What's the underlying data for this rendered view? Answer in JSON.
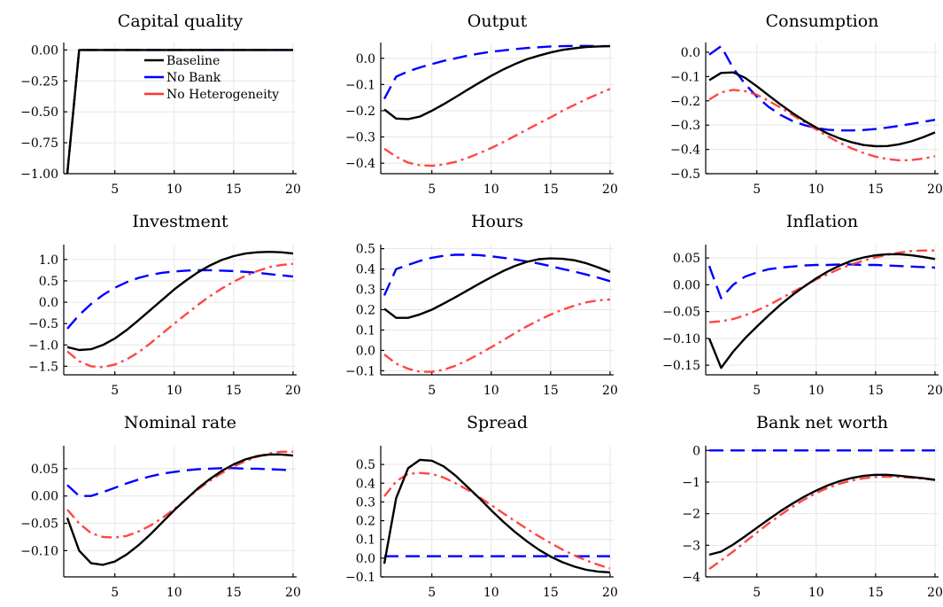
{
  "chart_data": {
    "type": "line",
    "legend": {
      "placement": "top-right of panel 1",
      "entries": [
        "Baseline",
        "No Bank",
        "No Heterogeneity"
      ]
    },
    "series_styles": [
      {
        "name": "Baseline",
        "color": "#000000",
        "dash": "solid"
      },
      {
        "name": "No Bank",
        "color": "#0000ff",
        "dash": "dashed"
      },
      {
        "name": "No Heterogeneity",
        "color": "#ff3333",
        "dash": "dash-dot"
      }
    ],
    "x": [
      1,
      2,
      3,
      4,
      5,
      6,
      7,
      8,
      9,
      10,
      11,
      12,
      13,
      14,
      15,
      16,
      17,
      18,
      19,
      20
    ],
    "panels": [
      {
        "title": "Capital quality",
        "xlim": [
          0.7,
          20.3
        ],
        "ylim": [
          -1.0,
          0.06
        ],
        "xticks": [
          {
            "v": 5,
            "label": "5"
          },
          {
            "v": 10,
            "label": "10"
          },
          {
            "v": 15,
            "label": "15"
          },
          {
            "v": 20,
            "label": "20"
          }
        ],
        "yticks": [
          {
            "v": 0,
            "label": "0.00"
          },
          {
            "v": -0.25,
            "label": "−0.25"
          },
          {
            "v": -0.5,
            "label": "−0.50"
          },
          {
            "v": -0.75,
            "label": "−0.75"
          },
          {
            "v": -1.0,
            "label": "−1.00"
          }
        ],
        "series": [
          [
            -1.0,
            0,
            0,
            0,
            0,
            0,
            0,
            0,
            0,
            0,
            0,
            0,
            0,
            0,
            0,
            0,
            0,
            0,
            0,
            0
          ],
          [
            -1.0,
            0,
            0,
            0,
            0,
            0,
            0,
            0,
            0,
            0,
            0,
            0,
            0,
            0,
            0,
            0,
            0,
            0,
            0,
            0
          ],
          [
            -1.0,
            0,
            0,
            0,
            0,
            0,
            0,
            0,
            0,
            0,
            0,
            0,
            0,
            0,
            0,
            0,
            0,
            0,
            0,
            0
          ]
        ]
      },
      {
        "title": "Output",
        "xlim": [
          0.7,
          20.3
        ],
        "ylim": [
          -0.44,
          0.06
        ],
        "xticks": [
          {
            "v": 5,
            "label": "5"
          },
          {
            "v": 10,
            "label": "10"
          },
          {
            "v": 15,
            "label": "15"
          },
          {
            "v": 20,
            "label": "20"
          }
        ],
        "yticks": [
          {
            "v": 0,
            "label": "0.0"
          },
          {
            "v": -0.1,
            "label": "−0.1"
          },
          {
            "v": -0.2,
            "label": "−0.2"
          },
          {
            "v": -0.3,
            "label": "−0.3"
          },
          {
            "v": -0.4,
            "label": "−0.4"
          }
        ],
        "series": [
          [
            -0.195,
            -0.23,
            -0.232,
            -0.222,
            -0.2,
            -0.175,
            -0.148,
            -0.12,
            -0.093,
            -0.067,
            -0.043,
            -0.022,
            -0.004,
            0.01,
            0.022,
            0.032,
            0.038,
            0.043,
            0.045,
            0.046
          ],
          [
            -0.155,
            -0.07,
            -0.05,
            -0.035,
            -0.022,
            -0.01,
            0.0,
            0.01,
            0.018,
            0.025,
            0.03,
            0.035,
            0.039,
            0.042,
            0.045,
            0.046,
            0.047,
            0.047,
            0.046,
            0.046
          ],
          [
            -0.345,
            -0.375,
            -0.398,
            -0.408,
            -0.41,
            -0.405,
            -0.395,
            -0.38,
            -0.362,
            -0.342,
            -0.32,
            -0.296,
            -0.272,
            -0.248,
            -0.225,
            -0.2,
            -0.178,
            -0.156,
            -0.136,
            -0.117
          ]
        ]
      },
      {
        "title": "Consumption",
        "xlim": [
          0.7,
          20.3
        ],
        "ylim": [
          -0.5,
          0.04
        ],
        "xticks": [
          {
            "v": 5,
            "label": "5"
          },
          {
            "v": 10,
            "label": "10"
          },
          {
            "v": 15,
            "label": "15"
          },
          {
            "v": 20,
            "label": "20"
          }
        ],
        "yticks": [
          {
            "v": 0,
            "label": "0.0"
          },
          {
            "v": -0.1,
            "label": "−0.1"
          },
          {
            "v": -0.2,
            "label": "−0.2"
          },
          {
            "v": -0.3,
            "label": "−0.3"
          },
          {
            "v": -0.4,
            "label": "−0.4"
          },
          {
            "v": -0.5,
            "label": "−0.5"
          }
        ],
        "series": [
          [
            -0.115,
            -0.085,
            -0.083,
            -0.105,
            -0.14,
            -0.178,
            -0.215,
            -0.25,
            -0.282,
            -0.31,
            -0.335,
            -0.355,
            -0.371,
            -0.382,
            -0.387,
            -0.386,
            -0.379,
            -0.367,
            -0.35,
            -0.33
          ],
          [
            -0.01,
            0.025,
            -0.065,
            -0.13,
            -0.183,
            -0.225,
            -0.258,
            -0.283,
            -0.3,
            -0.312,
            -0.319,
            -0.322,
            -0.322,
            -0.32,
            -0.316,
            -0.31,
            -0.303,
            -0.295,
            -0.287,
            -0.278
          ],
          [
            -0.195,
            -0.165,
            -0.155,
            -0.16,
            -0.175,
            -0.2,
            -0.228,
            -0.258,
            -0.288,
            -0.318,
            -0.347,
            -0.373,
            -0.396,
            -0.415,
            -0.43,
            -0.44,
            -0.445,
            -0.444,
            -0.438,
            -0.428
          ]
        ]
      },
      {
        "title": "Investment",
        "xlim": [
          0.7,
          20.3
        ],
        "ylim": [
          -1.7,
          1.35
        ],
        "xticks": [
          {
            "v": 5,
            "label": "5"
          },
          {
            "v": 10,
            "label": "10"
          },
          {
            "v": 15,
            "label": "15"
          },
          {
            "v": 20,
            "label": "20"
          }
        ],
        "yticks": [
          {
            "v": 1.0,
            "label": "1.0"
          },
          {
            "v": 0.5,
            "label": "0.5"
          },
          {
            "v": 0,
            "label": "0.0"
          },
          {
            "v": -0.5,
            "label": "−0.5"
          },
          {
            "v": -1.0,
            "label": "−1.0"
          },
          {
            "v": -1.5,
            "label": "−1.5"
          }
        ],
        "series": [
          [
            -1.05,
            -1.12,
            -1.1,
            -1.0,
            -0.85,
            -0.65,
            -0.42,
            -0.18,
            0.06,
            0.3,
            0.51,
            0.7,
            0.86,
            0.99,
            1.08,
            1.14,
            1.17,
            1.18,
            1.17,
            1.14
          ],
          [
            -0.62,
            -0.3,
            -0.04,
            0.17,
            0.34,
            0.47,
            0.57,
            0.64,
            0.69,
            0.72,
            0.74,
            0.75,
            0.75,
            0.74,
            0.73,
            0.71,
            0.69,
            0.66,
            0.63,
            0.6
          ],
          [
            -1.15,
            -1.38,
            -1.5,
            -1.52,
            -1.46,
            -1.34,
            -1.17,
            -0.96,
            -0.73,
            -0.5,
            -0.28,
            -0.06,
            0.14,
            0.32,
            0.48,
            0.62,
            0.73,
            0.82,
            0.87,
            0.9
          ]
        ]
      },
      {
        "title": "Hours",
        "xlim": [
          0.7,
          20.3
        ],
        "ylim": [
          -0.12,
          0.52
        ],
        "xticks": [
          {
            "v": 5,
            "label": "5"
          },
          {
            "v": 10,
            "label": "10"
          },
          {
            "v": 15,
            "label": "15"
          },
          {
            "v": 20,
            "label": "20"
          }
        ],
        "yticks": [
          {
            "v": 0.5,
            "label": "0.5"
          },
          {
            "v": 0.4,
            "label": "0.4"
          },
          {
            "v": 0.3,
            "label": "0.3"
          },
          {
            "v": 0.2,
            "label": "0.2"
          },
          {
            "v": 0.1,
            "label": "0.1"
          },
          {
            "v": 0,
            "label": "0.0"
          },
          {
            "v": -0.1,
            "label": "−0.1"
          }
        ],
        "series": [
          [
            0.205,
            0.16,
            0.16,
            0.177,
            0.2,
            0.23,
            0.262,
            0.295,
            0.328,
            0.36,
            0.39,
            0.415,
            0.435,
            0.448,
            0.452,
            0.45,
            0.443,
            0.428,
            0.408,
            0.385
          ],
          [
            0.27,
            0.4,
            0.42,
            0.44,
            0.455,
            0.465,
            0.47,
            0.47,
            0.468,
            0.462,
            0.455,
            0.447,
            0.437,
            0.427,
            0.414,
            0.4,
            0.387,
            0.373,
            0.357,
            0.34
          ],
          [
            -0.02,
            -0.065,
            -0.09,
            -0.105,
            -0.105,
            -0.095,
            -0.075,
            -0.048,
            -0.017,
            0.016,
            0.05,
            0.085,
            0.118,
            0.148,
            0.176,
            0.2,
            0.22,
            0.236,
            0.246,
            0.25
          ]
        ]
      },
      {
        "title": "Inflation",
        "xlim": [
          0.7,
          20.3
        ],
        "ylim": [
          -0.168,
          0.075
        ],
        "xticks": [
          {
            "v": 5,
            "label": "5"
          },
          {
            "v": 10,
            "label": "10"
          },
          {
            "v": 15,
            "label": "15"
          },
          {
            "v": 20,
            "label": "20"
          }
        ],
        "yticks": [
          {
            "v": 0.05,
            "label": "0.05"
          },
          {
            "v": 0,
            "label": "0.00"
          },
          {
            "v": -0.05,
            "label": "−0.05"
          },
          {
            "v": -0.1,
            "label": "−0.10"
          },
          {
            "v": -0.15,
            "label": "−0.15"
          }
        ],
        "series": [
          [
            -0.1,
            -0.155,
            -0.125,
            -0.1,
            -0.078,
            -0.057,
            -0.037,
            -0.019,
            -0.003,
            0.012,
            0.025,
            0.036,
            0.045,
            0.051,
            0.055,
            0.057,
            0.057,
            0.055,
            0.052,
            0.048
          ],
          [
            0.035,
            -0.025,
            0.0,
            0.015,
            0.023,
            0.029,
            0.032,
            0.034,
            0.036,
            0.037,
            0.037,
            0.038,
            0.038,
            0.037,
            0.037,
            0.036,
            0.035,
            0.034,
            0.033,
            0.032
          ],
          [
            -0.07,
            -0.068,
            -0.064,
            -0.057,
            -0.048,
            -0.038,
            -0.026,
            -0.014,
            -0.002,
            0.01,
            0.02,
            0.03,
            0.038,
            0.045,
            0.051,
            0.056,
            0.06,
            0.063,
            0.064,
            0.064
          ]
        ]
      },
      {
        "title": "Nominal rate",
        "xlim": [
          0.7,
          20.3
        ],
        "ylim": [
          -0.148,
          0.092
        ],
        "xticks": [
          {
            "v": 5,
            "label": "5"
          },
          {
            "v": 10,
            "label": "10"
          },
          {
            "v": 15,
            "label": "15"
          },
          {
            "v": 20,
            "label": "20"
          }
        ],
        "yticks": [
          {
            "v": 0.05,
            "label": "0.05"
          },
          {
            "v": 0,
            "label": "0.00"
          },
          {
            "v": -0.05,
            "label": "−0.05"
          },
          {
            "v": -0.1,
            "label": "−0.10"
          }
        ],
        "series": [
          [
            -0.04,
            -0.1,
            -0.123,
            -0.126,
            -0.12,
            -0.107,
            -0.09,
            -0.07,
            -0.048,
            -0.026,
            -0.006,
            0.014,
            0.031,
            0.046,
            0.058,
            0.067,
            0.073,
            0.076,
            0.076,
            0.074
          ],
          [
            0.02,
            0.0,
            0.0,
            0.007,
            0.015,
            0.023,
            0.03,
            0.036,
            0.041,
            0.044,
            0.047,
            0.049,
            0.05,
            0.051,
            0.051,
            0.05,
            0.05,
            0.049,
            0.048,
            0.047
          ],
          [
            -0.025,
            -0.05,
            -0.068,
            -0.075,
            -0.076,
            -0.073,
            -0.065,
            -0.054,
            -0.04,
            -0.024,
            -0.006,
            0.012,
            0.028,
            0.042,
            0.054,
            0.064,
            0.072,
            0.078,
            0.081,
            0.081
          ]
        ]
      },
      {
        "title": "Spread",
        "xlim": [
          0.7,
          20.3
        ],
        "ylim": [
          -0.1,
          0.6
        ],
        "xticks": [
          {
            "v": 5,
            "label": "5"
          },
          {
            "v": 10,
            "label": "10"
          },
          {
            "v": 15,
            "label": "15"
          },
          {
            "v": 20,
            "label": "20"
          }
        ],
        "yticks": [
          {
            "v": 0.5,
            "label": "0.5"
          },
          {
            "v": 0.4,
            "label": "0.4"
          },
          {
            "v": 0.3,
            "label": "0.3"
          },
          {
            "v": 0.2,
            "label": "0.2"
          },
          {
            "v": 0.1,
            "label": "0.1"
          },
          {
            "v": 0,
            "label": "0.0"
          },
          {
            "v": -0.1,
            "label": "−0.1"
          }
        ],
        "series": [
          [
            -0.03,
            0.32,
            0.48,
            0.525,
            0.52,
            0.49,
            0.44,
            0.38,
            0.32,
            0.255,
            0.195,
            0.14,
            0.09,
            0.045,
            0.008,
            -0.022,
            -0.045,
            -0.062,
            -0.072,
            -0.076
          ],
          [
            0.01,
            0.01,
            0.01,
            0.01,
            0.01,
            0.01,
            0.01,
            0.01,
            0.01,
            0.01,
            0.01,
            0.01,
            0.01,
            0.01,
            0.01,
            0.01,
            0.01,
            0.01,
            0.01,
            0.01
          ],
          [
            0.33,
            0.41,
            0.45,
            0.455,
            0.45,
            0.43,
            0.4,
            0.365,
            0.325,
            0.283,
            0.24,
            0.198,
            0.157,
            0.117,
            0.08,
            0.045,
            0.015,
            -0.012,
            -0.035,
            -0.055
          ]
        ]
      },
      {
        "title": "Bank net worth",
        "xlim": [
          0.7,
          20.3
        ],
        "ylim": [
          -4.0,
          0.15
        ],
        "xticks": [
          {
            "v": 5,
            "label": "5"
          },
          {
            "v": 10,
            "label": "10"
          },
          {
            "v": 15,
            "label": "15"
          },
          {
            "v": 20,
            "label": "20"
          }
        ],
        "yticks": [
          {
            "v": 0,
            "label": "0"
          },
          {
            "v": -1,
            "label": "−1"
          },
          {
            "v": -2,
            "label": "−2"
          },
          {
            "v": -3,
            "label": "−3"
          },
          {
            "v": -4,
            "label": "−4"
          }
        ],
        "series": [
          [
            -3.3,
            -3.2,
            -2.98,
            -2.72,
            -2.45,
            -2.18,
            -1.92,
            -1.68,
            -1.46,
            -1.27,
            -1.1,
            -0.97,
            -0.87,
            -0.8,
            -0.77,
            -0.77,
            -0.8,
            -0.84,
            -0.88,
            -0.93
          ],
          [
            0,
            0,
            0,
            0,
            0,
            0,
            0,
            0,
            0,
            0,
            0,
            0,
            0,
            0,
            0,
            0,
            0,
            0,
            0,
            0
          ],
          [
            -3.75,
            -3.48,
            -3.2,
            -2.9,
            -2.6,
            -2.31,
            -2.04,
            -1.78,
            -1.55,
            -1.35,
            -1.18,
            -1.05,
            -0.95,
            -0.88,
            -0.84,
            -0.83,
            -0.84,
            -0.86,
            -0.89,
            -0.93
          ]
        ]
      }
    ]
  }
}
